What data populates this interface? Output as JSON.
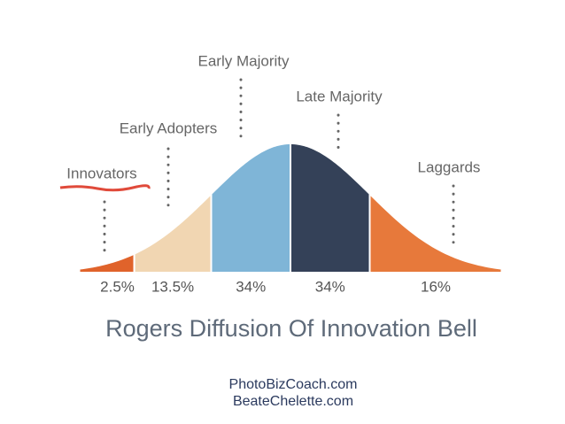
{
  "chart_data": {
    "type": "bell",
    "title": "Rogers Diffusion Of Innovation Bell",
    "categories": [
      "Innovators",
      "Early Adopters",
      "Early Majority",
      "Late Majority",
      "Laggards"
    ],
    "values": [
      2.5,
      13.5,
      34,
      34,
      16
    ],
    "value_labels": [
      "2.5%",
      "13.5%",
      "34%",
      "34%",
      "16%"
    ],
    "colors": [
      "#e0632b",
      "#f1d6b2",
      "#7fb5d7",
      "#344158",
      "#e7793b"
    ],
    "credits": [
      "PhotoBizCoach.com",
      "BeateChelette.com"
    ]
  }
}
